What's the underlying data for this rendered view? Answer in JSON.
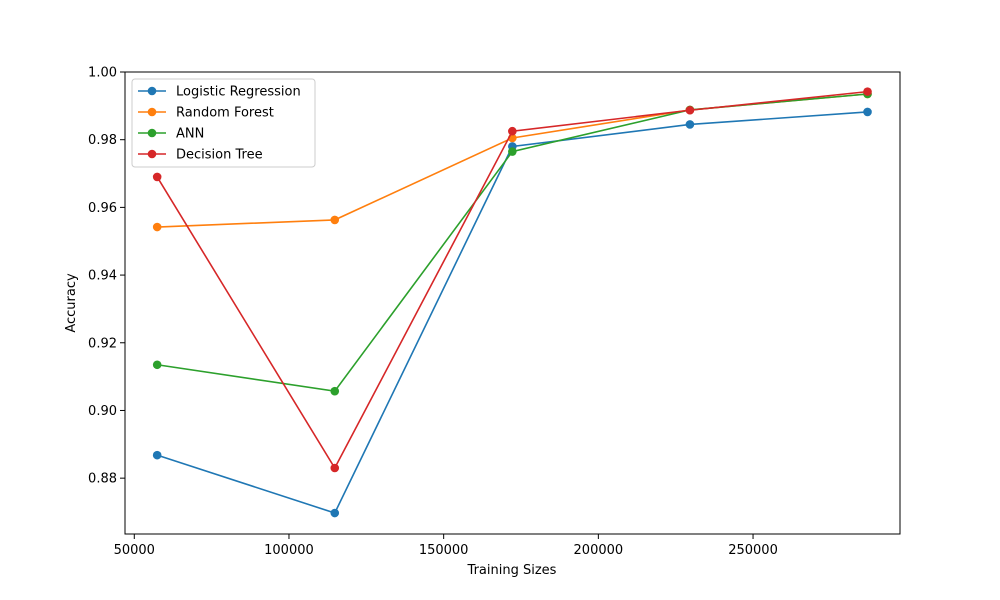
{
  "chart_data": {
    "type": "line",
    "title": "",
    "xlabel": "Training Sizes",
    "ylabel": "Accuracy",
    "x": [
      57400,
      114800,
      172200,
      229600,
      287000
    ],
    "xlim": [
      47000,
      297500
    ],
    "ylim": [
      0.8635,
      1.0
    ],
    "xticks": [
      50000,
      100000,
      150000,
      200000,
      250000
    ],
    "xtick_labels": [
      "50000",
      "100000",
      "150000",
      "200000",
      "250000"
    ],
    "yticks": [
      0.88,
      0.9,
      0.92,
      0.94,
      0.96,
      0.98,
      1.0
    ],
    "ytick_labels": [
      "0.88",
      "0.90",
      "0.92",
      "0.94",
      "0.96",
      "0.98",
      "1.00"
    ],
    "grid": false,
    "legend_position": "top-left",
    "series": [
      {
        "name": "Logistic Regression",
        "color": "#1f77b4",
        "values": [
          0.8868,
          0.8697,
          0.978,
          0.9845,
          0.9882
        ]
      },
      {
        "name": "Random Forest",
        "color": "#ff7f0e",
        "values": [
          0.9542,
          0.9563,
          0.9805,
          0.9888,
          0.9935
        ]
      },
      {
        "name": "ANN",
        "color": "#2ca02c",
        "values": [
          0.9135,
          0.9057,
          0.9765,
          0.9888,
          0.9935
        ]
      },
      {
        "name": "Decision Tree",
        "color": "#d62728",
        "values": [
          0.969,
          0.883,
          0.9825,
          0.9887,
          0.9942
        ]
      }
    ]
  }
}
